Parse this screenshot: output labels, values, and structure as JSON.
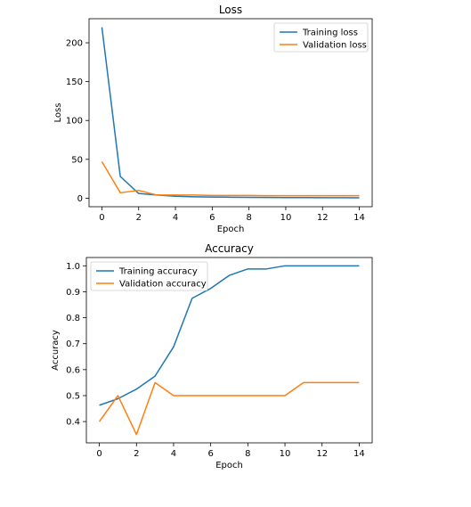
{
  "chart_data": [
    {
      "type": "line",
      "title": "Loss",
      "xlabel": "Epoch",
      "ylabel": "Loss",
      "xlim": [
        -0.7,
        14.7
      ],
      "ylim": [
        -11,
        231
      ],
      "xticks": [
        0,
        2,
        4,
        6,
        8,
        10,
        12,
        14
      ],
      "yticks": [
        0,
        50,
        100,
        150,
        200
      ],
      "legend_position": "top-right",
      "x": [
        0,
        1,
        2,
        3,
        4,
        5,
        6,
        7,
        8,
        9,
        10,
        11,
        12,
        13,
        14
      ],
      "series": [
        {
          "name": "Training loss",
          "color": "#1f77b4",
          "values": [
            220,
            28,
            6,
            4,
            2.5,
            1.8,
            1.5,
            1.2,
            1.0,
            0.9,
            0.8,
            0.7,
            0.6,
            0.6,
            0.5
          ]
        },
        {
          "name": "Validation loss",
          "color": "#ff7f0e",
          "values": [
            47,
            7,
            10,
            4,
            4,
            4,
            3.5,
            3.5,
            3.5,
            3.2,
            3.2,
            3.2,
            3.2,
            3.2,
            3.2
          ]
        }
      ]
    },
    {
      "type": "line",
      "title": "Accuracy",
      "xlabel": "Epoch",
      "ylabel": "Accuracy",
      "xlim": [
        -0.7,
        14.7
      ],
      "ylim": [
        0.318,
        1.032
      ],
      "xticks": [
        0,
        2,
        4,
        6,
        8,
        10,
        12,
        14
      ],
      "yticks": [
        0.4,
        0.5,
        0.6,
        0.7,
        0.8,
        0.9,
        1.0
      ],
      "legend_position": "top-left",
      "x": [
        0,
        1,
        2,
        3,
        4,
        5,
        6,
        7,
        8,
        9,
        10,
        11,
        12,
        13,
        14
      ],
      "series": [
        {
          "name": "Training accuracy",
          "color": "#1f77b4",
          "values": [
            0.463,
            0.488,
            0.525,
            0.575,
            0.688,
            0.875,
            0.913,
            0.963,
            0.988,
            0.988,
            1.0,
            1.0,
            1.0,
            1.0,
            1.0
          ]
        },
        {
          "name": "Validation accuracy",
          "color": "#ff7f0e",
          "values": [
            0.4,
            0.5,
            0.35,
            0.55,
            0.5,
            0.5,
            0.5,
            0.5,
            0.5,
            0.5,
            0.5,
            0.55,
            0.55,
            0.55,
            0.55
          ]
        }
      ]
    }
  ]
}
